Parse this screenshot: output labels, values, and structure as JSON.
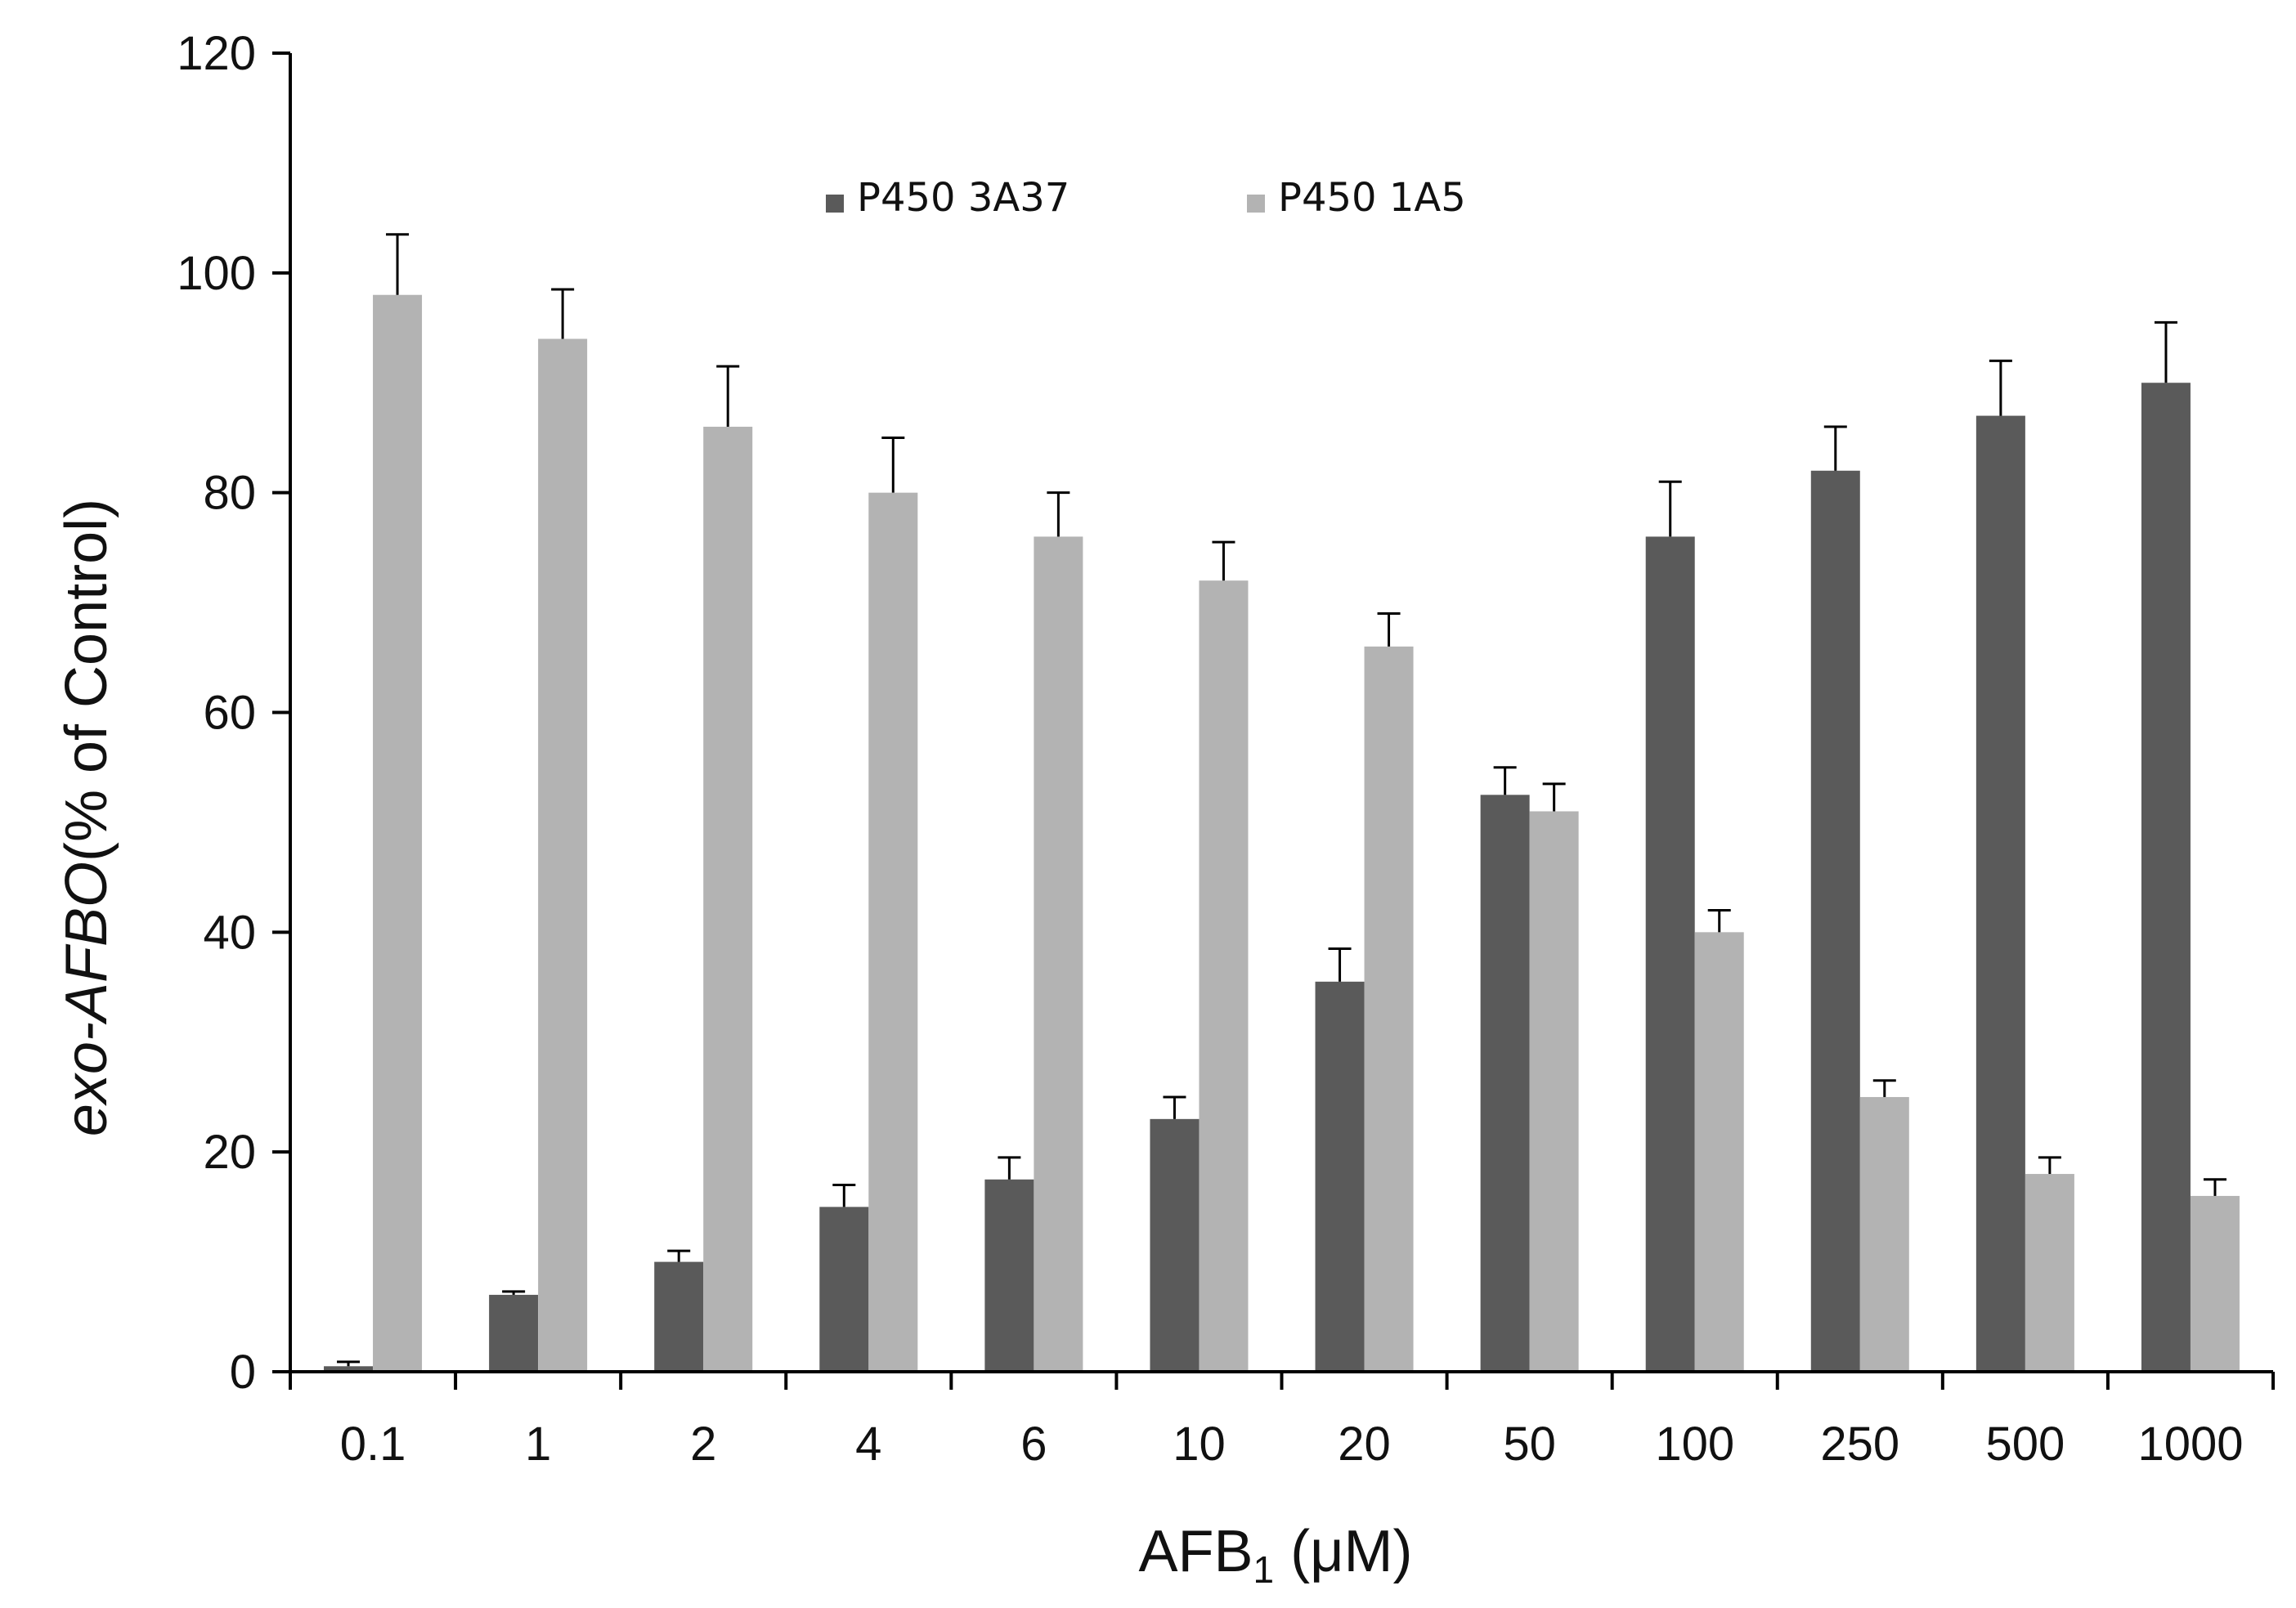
{
  "chart_data": {
    "type": "bar",
    "title": "",
    "xlabel_main": "AFB",
    "xlabel_sub": "1",
    "xlabel_unit": " (μM)",
    "ylabel_prefix": "exo-",
    "ylabel_italic": "AFBO",
    "ylabel_suffix": "(% of Control)",
    "categories": [
      "0.1",
      "1",
      "2",
      "4",
      "6",
      "10",
      "20",
      "50",
      "100",
      "250",
      "500",
      "1000"
    ],
    "series": [
      {
        "name": "P450 3A37",
        "color": "#5a5a5a",
        "values": [
          0.5,
          7,
          10,
          15,
          17.5,
          23,
          35.5,
          52.5,
          76,
          82,
          87,
          90
        ],
        "errors": [
          0.4,
          0.3,
          1.0,
          2.0,
          2.0,
          2.0,
          3.0,
          2.5,
          5.0,
          4.0,
          5.0,
          5.5
        ]
      },
      {
        "name": "P450 1A5",
        "color": "#b3b3b3",
        "values": [
          98,
          94,
          86,
          80,
          76,
          72,
          66,
          51,
          40,
          25,
          18,
          16
        ],
        "errors": [
          5.5,
          4.5,
          5.5,
          5.0,
          4.0,
          3.5,
          3.0,
          2.5,
          2.0,
          1.5,
          1.5,
          1.5
        ]
      }
    ],
    "ylim": [
      0,
      120
    ],
    "yticks": [
      0,
      20,
      40,
      60,
      80,
      100,
      120
    ],
    "grid": false,
    "legend_position": "top-center"
  }
}
